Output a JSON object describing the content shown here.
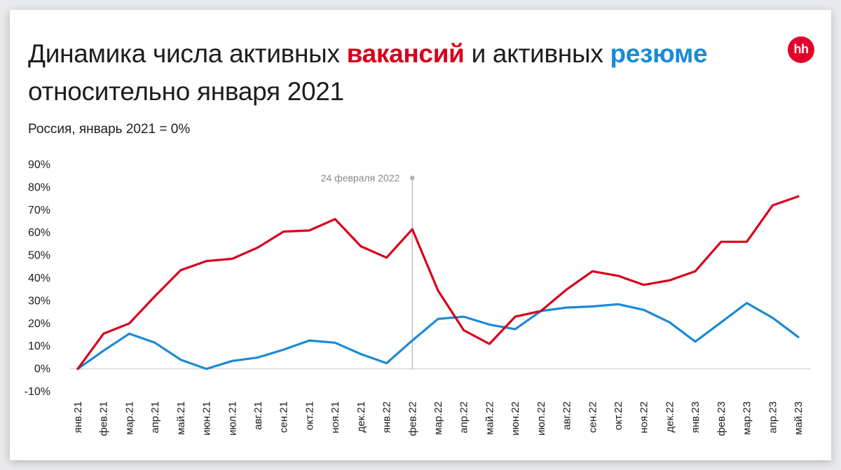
{
  "header": {
    "title_part1": "Динамика числа активных ",
    "title_red": "вакансий",
    "title_part2": " и активных ",
    "title_blue": "резюме",
    "title_line2": "относительно января 2021",
    "subtitle": "Россия, январь 2021 = 0%",
    "logo_text": "hh"
  },
  "colors": {
    "vacancies": "#d6001c",
    "resumes": "#1a8ad6",
    "grid": "#c8c8c8",
    "annotation": "#b0b0b0"
  },
  "chart_data": {
    "type": "line",
    "title": "Динамика числа активных вакансий и активных резюме относительно января 2021",
    "subtitle": "Россия, январь 2021 = 0%",
    "xlabel": "",
    "ylabel": "",
    "ylim": [
      -10,
      90
    ],
    "yticks": [
      -10,
      0,
      10,
      20,
      30,
      40,
      50,
      60,
      70,
      80,
      90
    ],
    "ytick_labels": [
      "-10%",
      "0%",
      "10%",
      "20%",
      "30%",
      "40%",
      "50%",
      "60%",
      "70%",
      "80%",
      "90%"
    ],
    "categories": [
      "янв.21",
      "фев.21",
      "мар.21",
      "апр.21",
      "май.21",
      "июн.21",
      "июл.21",
      "авг.21",
      "сен.21",
      "окт.21",
      "ноя.21",
      "дек.21",
      "янв.22",
      "фев.22",
      "мар.22",
      "апр.22",
      "май.22",
      "июн.22",
      "июл.22",
      "авг.22",
      "сен.22",
      "окт.22",
      "ноя.22",
      "дек.22",
      "янв.23",
      "фев.23",
      "мар.23",
      "апр.23",
      "май.23"
    ],
    "series": [
      {
        "name": "вакансии",
        "color": "#d6001c",
        "values": [
          0,
          15.5,
          20,
          32,
          43.5,
          47.5,
          48.5,
          53.5,
          60.5,
          61,
          66,
          54,
          49,
          61.5,
          34.5,
          17,
          11,
          23,
          25.5,
          35,
          43,
          41,
          37,
          39,
          43,
          56,
          56,
          72,
          76
        ]
      },
      {
        "name": "резюме",
        "color": "#1a8ad6",
        "values": [
          0,
          8,
          15.5,
          11.5,
          4,
          0,
          3.5,
          5,
          8.5,
          12.5,
          11.5,
          6.5,
          2.5,
          12.5,
          22,
          23,
          19.5,
          17.5,
          25.5,
          27,
          27.5,
          28.5,
          26,
          20.5,
          12,
          20.5,
          29,
          22.5,
          14
        ]
      }
    ],
    "annotations": [
      {
        "text": "24 февраля 2022",
        "x": 13
      }
    ],
    "grid": false,
    "legend": "in-title"
  }
}
